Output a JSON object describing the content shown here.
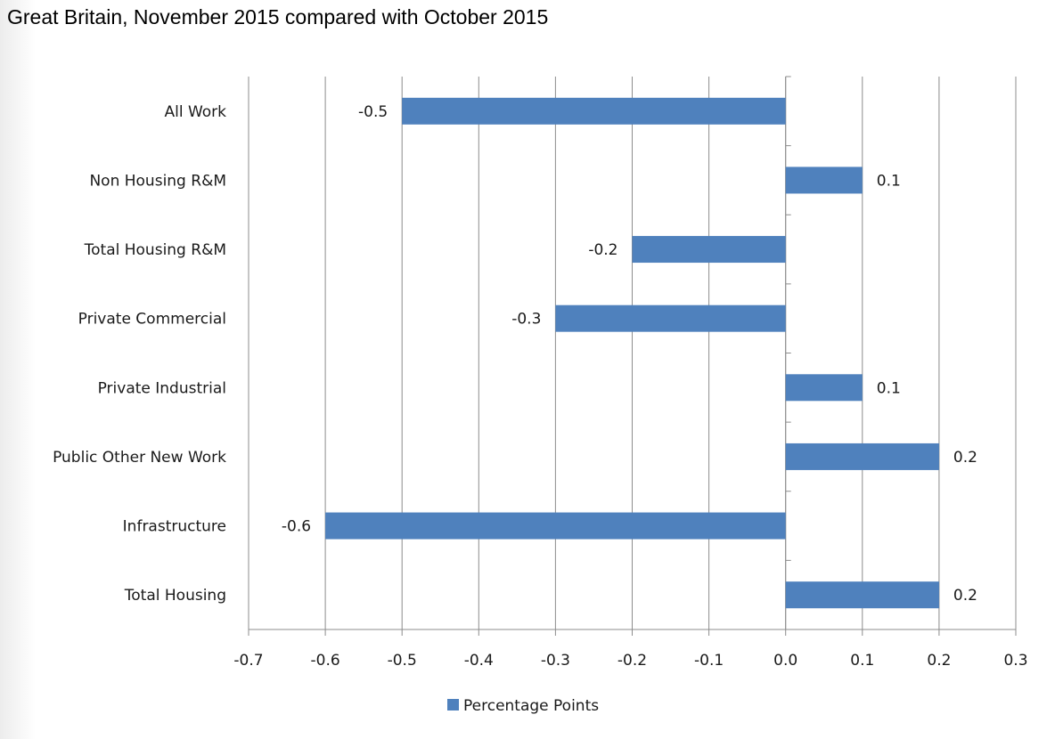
{
  "header": {
    "title": "Great Britain, November 2015 compared with October 2015"
  },
  "chart_data": {
    "type": "bar",
    "orientation": "horizontal",
    "categories": [
      "All Work",
      "Non Housing R&M",
      "Total Housing R&M",
      "Private Commercial",
      "Private Industrial",
      "Public Other New Work",
      "Infrastructure",
      "Total Housing"
    ],
    "series": [
      {
        "name": "Percentage Points",
        "values": [
          -0.5,
          0.1,
          -0.2,
          -0.3,
          0.1,
          0.2,
          -0.6,
          0.2
        ],
        "color": "#4f81bd"
      }
    ],
    "data_labels": [
      "-0.5",
      "0.1",
      "-0.2",
      "-0.3",
      "0.1",
      "0.2",
      "-0.6",
      "0.2"
    ],
    "xlim": [
      -0.7,
      0.3
    ],
    "xticks": [
      -0.7,
      -0.6,
      -0.5,
      -0.4,
      -0.3,
      -0.2,
      -0.1,
      0.0,
      0.1,
      0.2,
      0.3
    ],
    "xtick_labels": [
      "-0.7",
      "-0.6",
      "-0.5",
      "-0.4",
      "-0.3",
      "-0.2",
      "-0.1",
      "0.0",
      "0.1",
      "0.2",
      "0.3"
    ],
    "grid": "vertical",
    "legend": "bottom"
  }
}
